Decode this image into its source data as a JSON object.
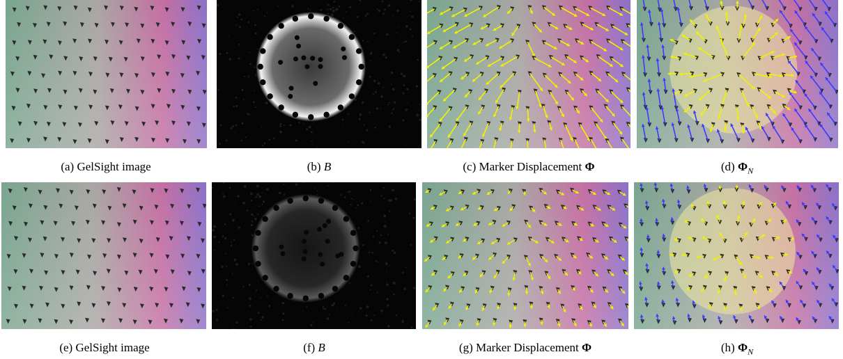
{
  "figure": {
    "panels": [
      {
        "caption_label": "(a)",
        "caption_text": "GelSight image",
        "caption_symbol": "",
        "caption_subscript": "",
        "type": "gelsight",
        "arrows": "none"
      },
      {
        "caption_label": "(b)",
        "caption_text": "",
        "caption_symbol": "B",
        "caption_subscript": "",
        "type": "binary",
        "intensity": "strong"
      },
      {
        "caption_label": "(c)",
        "caption_text": "Marker Displacement",
        "caption_symbol": "Φ",
        "caption_subscript": "",
        "type": "gelsight",
        "arrows": "yellow-long"
      },
      {
        "caption_label": "(d)",
        "caption_text": "",
        "caption_symbol": "Φ",
        "caption_subscript": "N",
        "type": "gelsight-circle",
        "arrows": "blue-yellow-long"
      },
      {
        "caption_label": "(e)",
        "caption_text": "GelSight image",
        "caption_symbol": "",
        "caption_subscript": "",
        "type": "gelsight",
        "arrows": "none"
      },
      {
        "caption_label": "(f)",
        "caption_text": "",
        "caption_symbol": "B",
        "caption_subscript": "",
        "type": "binary",
        "intensity": "weak"
      },
      {
        "caption_label": "(g)",
        "caption_text": "Marker Displacement",
        "caption_symbol": "Φ",
        "caption_subscript": "",
        "type": "gelsight",
        "arrows": "yellow-short"
      },
      {
        "caption_label": "(h)",
        "caption_text": "",
        "caption_symbol": "Φ",
        "caption_subscript": "N",
        "type": "gelsight-circle",
        "arrows": "blue-yellow-short"
      }
    ],
    "colors": {
      "arrow_yellow": "#f2f200",
      "arrow_blue": "#3a3aff",
      "marker_dark": "#2a2a2a",
      "gel_green": "#79a58f",
      "gel_gray": "#a9a6a4",
      "gel_pink": "#c46fa2",
      "gel_purple": "#8b71c9",
      "circle_fill": "#f0e8a0"
    }
  }
}
